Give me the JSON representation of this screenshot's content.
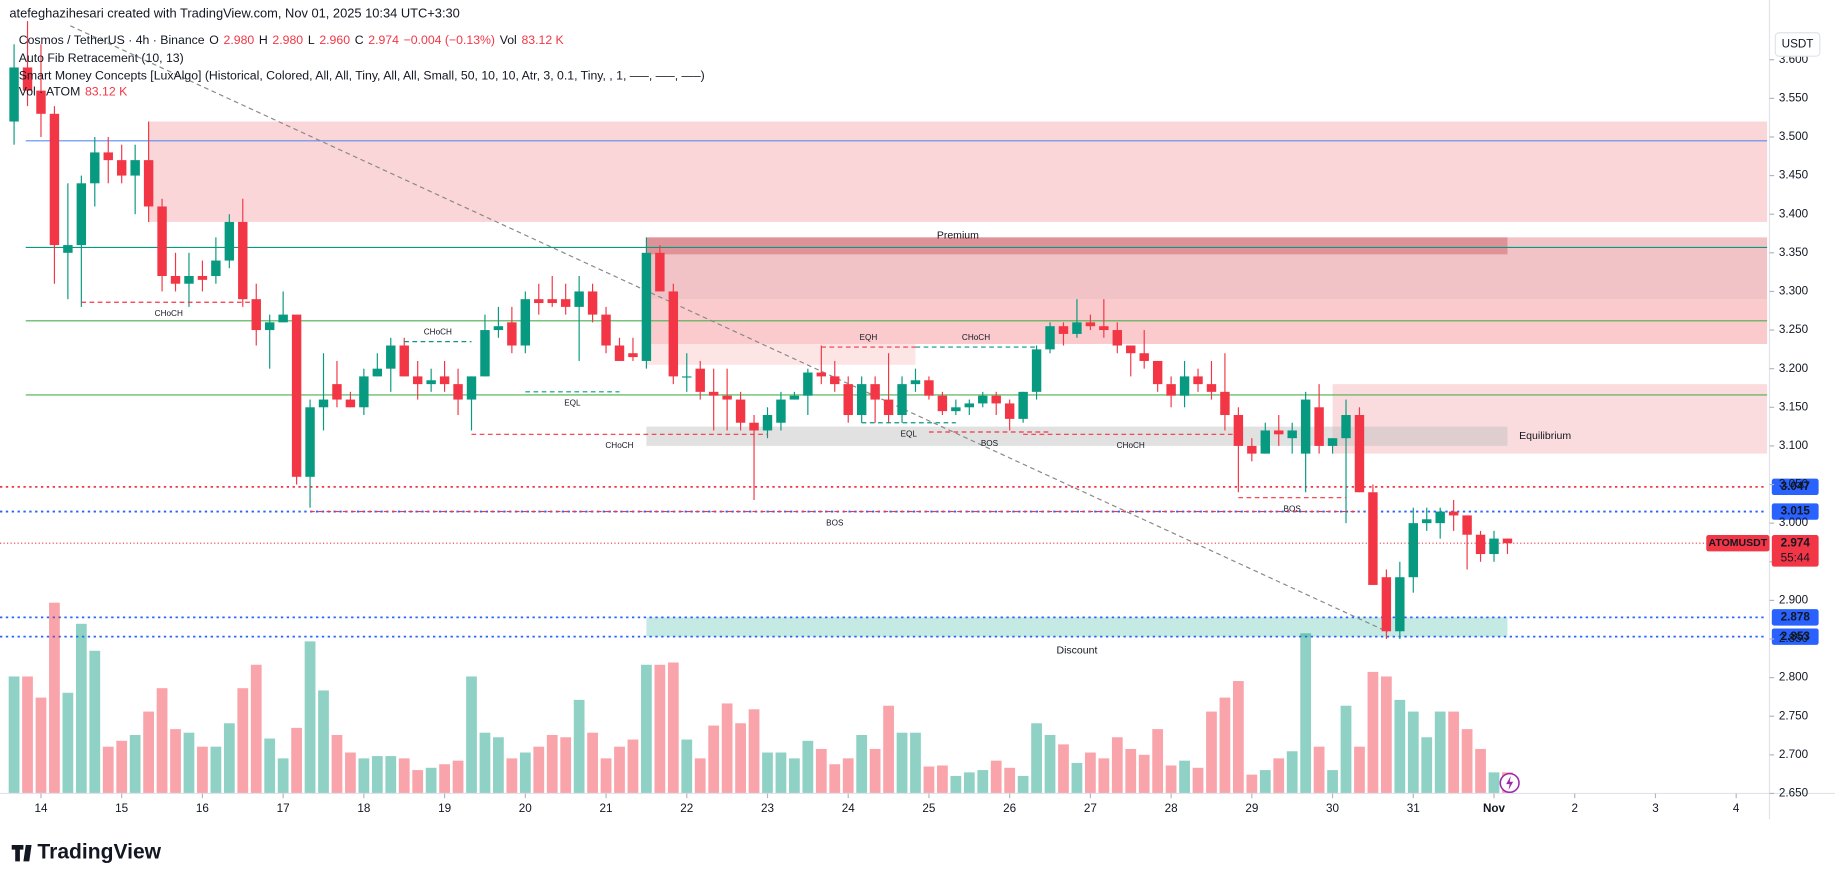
{
  "header": {
    "credit": "atefeghazihesari created with TradingView.com, Nov 01, 2025 10:34 UTC+3:30",
    "legend_line": [
      {
        "text": "Cosmos / TetherUS · 4h · Binance",
        "color": "#131722"
      },
      {
        "text": "O",
        "color": "#131722"
      },
      {
        "text": "2.980",
        "color": "#f23645"
      },
      {
        "text": "H",
        "color": "#131722"
      },
      {
        "text": "2.980",
        "color": "#f23645"
      },
      {
        "text": "L",
        "color": "#131722"
      },
      {
        "text": "2.960",
        "color": "#f23645"
      },
      {
        "text": "C",
        "color": "#131722"
      },
      {
        "text": "2.974",
        "color": "#f23645"
      },
      {
        "text": "−0.004 (−0.13%)",
        "color": "#f23645"
      },
      {
        "text": "Vol",
        "color": "#131722"
      },
      {
        "text": "83.12 K",
        "color": "#f23645"
      }
    ],
    "indicators": [
      "Auto Fib Retracement (10, 13)",
      "Smart Money Concepts [LuxAlgo] (Historical, Colored, All, All, Tiny, All, All, Small, 50, 10, 10, Atr, 3, 0.1, Tiny, , 1, —–, —–, —–)"
    ],
    "vol_line": [
      {
        "text": "Vol · ATOM",
        "color": "#131722"
      },
      {
        "text": "83.12 K",
        "color": "#f23645"
      }
    ],
    "currency": "USDT",
    "logo": "TradingView"
  },
  "chart_data": {
    "type": "candlestick",
    "up_color": "#089981",
    "down_color": "#f23645",
    "ohlc": [
      [
        3.52,
        3.62,
        3.49,
        3.59
      ],
      [
        3.59,
        3.65,
        3.54,
        3.56
      ],
      [
        3.56,
        3.62,
        3.5,
        3.53
      ],
      [
        3.53,
        3.54,
        3.31,
        3.36
      ],
      [
        3.35,
        3.44,
        3.29,
        3.36
      ],
      [
        3.36,
        3.45,
        3.28,
        3.44
      ],
      [
        3.44,
        3.5,
        3.41,
        3.48
      ],
      [
        3.48,
        3.5,
        3.44,
        3.47
      ],
      [
        3.47,
        3.49,
        3.44,
        3.45
      ],
      [
        3.45,
        3.49,
        3.4,
        3.47
      ],
      [
        3.47,
        3.52,
        3.39,
        3.41
      ],
      [
        3.41,
        3.42,
        3.3,
        3.32
      ],
      [
        3.32,
        3.35,
        3.3,
        3.31
      ],
      [
        3.31,
        3.35,
        3.28,
        3.32
      ],
      [
        3.32,
        3.34,
        3.3,
        3.315
      ],
      [
        3.32,
        3.37,
        3.31,
        3.34
      ],
      [
        3.34,
        3.4,
        3.33,
        3.39
      ],
      [
        3.39,
        3.42,
        3.28,
        3.29
      ],
      [
        3.29,
        3.31,
        3.23,
        3.25
      ],
      [
        3.25,
        3.27,
        3.2,
        3.26
      ],
      [
        3.26,
        3.3,
        3.26,
        3.27
      ],
      [
        3.27,
        3.27,
        3.05,
        3.06
      ],
      [
        3.06,
        3.16,
        3.02,
        3.15
      ],
      [
        3.15,
        3.22,
        3.12,
        3.16
      ],
      [
        3.18,
        3.21,
        3.15,
        3.16
      ],
      [
        3.16,
        3.17,
        3.15,
        3.15
      ],
      [
        3.15,
        3.2,
        3.14,
        3.19
      ],
      [
        3.19,
        3.22,
        3.19,
        3.2
      ],
      [
        3.2,
        3.24,
        3.17,
        3.23
      ],
      [
        3.23,
        3.24,
        3.19,
        3.19
      ],
      [
        3.19,
        3.21,
        3.16,
        3.18
      ],
      [
        3.18,
        3.2,
        3.17,
        3.185
      ],
      [
        3.19,
        3.21,
        3.17,
        3.18
      ],
      [
        3.18,
        3.2,
        3.14,
        3.16
      ],
      [
        3.16,
        3.19,
        3.12,
        3.19
      ],
      [
        3.19,
        3.27,
        3.19,
        3.25
      ],
      [
        3.25,
        3.28,
        3.24,
        3.255
      ],
      [
        3.26,
        3.28,
        3.22,
        3.23
      ],
      [
        3.23,
        3.3,
        3.22,
        3.29
      ],
      [
        3.29,
        3.31,
        3.27,
        3.285
      ],
      [
        3.29,
        3.32,
        3.28,
        3.285
      ],
      [
        3.29,
        3.31,
        3.27,
        3.28
      ],
      [
        3.28,
        3.32,
        3.21,
        3.3
      ],
      [
        3.3,
        3.31,
        3.26,
        3.27
      ],
      [
        3.27,
        3.28,
        3.22,
        3.23
      ],
      [
        3.23,
        3.24,
        3.21,
        3.21
      ],
      [
        3.22,
        3.24,
        3.21,
        3.215
      ],
      [
        3.21,
        3.37,
        3.2,
        3.35
      ],
      [
        3.35,
        3.36,
        3.3,
        3.3
      ],
      [
        3.3,
        3.31,
        3.18,
        3.19
      ],
      [
        3.19,
        3.22,
        3.17,
        3.19
      ],
      [
        3.2,
        3.21,
        3.16,
        3.17
      ],
      [
        3.17,
        3.2,
        3.12,
        3.165
      ],
      [
        3.165,
        3.2,
        3.12,
        3.16
      ],
      [
        3.16,
        3.17,
        3.12,
        3.13
      ],
      [
        3.13,
        3.14,
        3.03,
        3.12
      ],
      [
        3.12,
        3.15,
        3.11,
        3.14
      ],
      [
        3.13,
        3.17,
        3.12,
        3.16
      ],
      [
        3.16,
        3.17,
        3.16,
        3.165
      ],
      [
        3.165,
        3.2,
        3.14,
        3.195
      ],
      [
        3.195,
        3.23,
        3.18,
        3.19
      ],
      [
        3.19,
        3.21,
        3.17,
        3.18
      ],
      [
        3.18,
        3.19,
        3.13,
        3.14
      ],
      [
        3.14,
        3.19,
        3.13,
        3.18
      ],
      [
        3.18,
        3.19,
        3.13,
        3.16
      ],
      [
        3.16,
        3.22,
        3.13,
        3.14
      ],
      [
        3.14,
        3.19,
        3.13,
        3.18
      ],
      [
        3.18,
        3.2,
        3.17,
        3.185
      ],
      [
        3.185,
        3.19,
        3.16,
        3.165
      ],
      [
        3.165,
        3.17,
        3.14,
        3.145
      ],
      [
        3.145,
        3.16,
        3.14,
        3.15
      ],
      [
        3.15,
        3.16,
        3.14,
        3.155
      ],
      [
        3.155,
        3.17,
        3.15,
        3.165
      ],
      [
        3.165,
        3.17,
        3.14,
        3.155
      ],
      [
        3.155,
        3.16,
        3.12,
        3.135
      ],
      [
        3.135,
        3.17,
        3.13,
        3.17
      ],
      [
        3.17,
        3.23,
        3.16,
        3.225
      ],
      [
        3.225,
        3.26,
        3.22,
        3.255
      ],
      [
        3.255,
        3.26,
        3.23,
        3.245
      ],
      [
        3.245,
        3.29,
        3.24,
        3.26
      ],
      [
        3.26,
        3.27,
        3.25,
        3.255
      ],
      [
        3.255,
        3.29,
        3.24,
        3.25
      ],
      [
        3.25,
        3.26,
        3.22,
        3.23
      ],
      [
        3.23,
        3.23,
        3.19,
        3.22
      ],
      [
        3.22,
        3.25,
        3.2,
        3.21
      ],
      [
        3.21,
        3.21,
        3.17,
        3.18
      ],
      [
        3.18,
        3.19,
        3.15,
        3.165
      ],
      [
        3.165,
        3.21,
        3.15,
        3.19
      ],
      [
        3.19,
        3.2,
        3.17,
        3.18
      ],
      [
        3.18,
        3.21,
        3.16,
        3.17
      ],
      [
        3.17,
        3.22,
        3.12,
        3.14
      ],
      [
        3.14,
        3.15,
        3.04,
        3.1
      ],
      [
        3.1,
        3.11,
        3.08,
        3.09
      ],
      [
        3.09,
        3.13,
        3.09,
        3.12
      ],
      [
        3.12,
        3.14,
        3.1,
        3.115
      ],
      [
        3.11,
        3.13,
        3.09,
        3.12
      ],
      [
        3.09,
        3.17,
        3.04,
        3.16
      ],
      [
        3.15,
        3.18,
        3.09,
        3.1
      ],
      [
        3.1,
        3.11,
        3.09,
        3.11
      ],
      [
        3.11,
        3.16,
        3.0,
        3.14
      ],
      [
        3.14,
        3.15,
        3.04,
        3.04
      ],
      [
        3.04,
        3.05,
        2.92,
        2.92
      ],
      [
        2.93,
        2.94,
        2.85,
        2.86
      ],
      [
        2.86,
        2.95,
        2.85,
        2.93
      ],
      [
        2.93,
        3.02,
        2.91,
        3.0
      ],
      [
        3.0,
        3.02,
        2.99,
        3.005
      ],
      [
        3.0,
        3.02,
        2.98,
        3.015
      ],
      [
        3.015,
        3.03,
        2.99,
        3.01
      ],
      [
        3.01,
        3.01,
        2.94,
        2.985
      ],
      [
        2.985,
        2.99,
        2.95,
        2.96
      ],
      [
        2.96,
        2.99,
        2.95,
        2.98
      ],
      [
        2.98,
        2.98,
        2.96,
        2.974
      ]
    ],
    "volume": [
      460,
      460,
      377,
      750,
      396,
      667,
      561,
      184,
      207,
      230,
      322,
      414,
      253,
      239,
      184,
      184,
      276,
      414,
      506,
      216,
      138,
      258,
      598,
      405,
      230,
      161,
      138,
      147,
      147,
      138,
      92,
      101,
      115,
      129,
      460,
      239,
      221,
      138,
      161,
      184,
      230,
      221,
      368,
      239,
      138,
      184,
      212,
      506,
      506,
      515,
      212,
      138,
      267,
      354,
      276,
      331,
      161,
      161,
      138,
      207,
      175,
      115,
      138,
      230,
      175,
      345,
      239,
      239,
      106,
      110,
      69,
      83,
      92,
      129,
      101,
      69,
      276,
      230,
      193,
      120,
      161,
      138,
      221,
      175,
      152,
      253,
      110,
      129,
      101,
      322,
      377,
      442,
      74,
      92,
      138,
      166,
      630,
      184,
      92,
      345,
      184,
      478,
      460,
      368,
      322,
      221,
      322,
      322,
      253,
      175,
      83,
      83.12
    ],
    "xlim": [
      -0.35,
      130.3
    ],
    "ylim": [
      2.65,
      3.644
    ],
    "xticks": [
      {
        "value": 2,
        "label": "14"
      },
      {
        "value": 8,
        "label": "15"
      },
      {
        "value": 14,
        "label": "16"
      },
      {
        "value": 20,
        "label": "17"
      },
      {
        "value": 26,
        "label": "18"
      },
      {
        "value": 32,
        "label": "19"
      },
      {
        "value": 38,
        "label": "20"
      },
      {
        "value": 44,
        "label": "21"
      },
      {
        "value": 50,
        "label": "22"
      },
      {
        "value": 56,
        "label": "23"
      },
      {
        "value": 62,
        "label": "24"
      },
      {
        "value": 68,
        "label": "25"
      },
      {
        "value": 74,
        "label": "26"
      },
      {
        "value": 80,
        "label": "27"
      },
      {
        "value": 86,
        "label": "28"
      },
      {
        "value": 92,
        "label": "29"
      },
      {
        "value": 98,
        "label": "30"
      },
      {
        "value": 104,
        "label": "31"
      },
      {
        "value": 110,
        "label": "Nov"
      },
      {
        "value": 116,
        "label": "2"
      },
      {
        "value": 122,
        "label": "3"
      },
      {
        "value": 128,
        "label": "4"
      }
    ],
    "yticks": [
      {
        "value": 2.65,
        "label": "2.650"
      },
      {
        "value": 2.7,
        "label": "2.700"
      },
      {
        "value": 2.75,
        "label": "2.750"
      },
      {
        "value": 2.8,
        "label": "2.800"
      },
      {
        "value": 2.85,
        "label": "2.850"
      },
      {
        "value": 2.9,
        "label": "2.900"
      },
      {
        "value": 2.95,
        "label": "2.950"
      },
      {
        "value": 3.0,
        "label": "3.000"
      },
      {
        "value": 3.05,
        "label": "3.050"
      },
      {
        "value": 3.1,
        "label": "3.100"
      },
      {
        "value": 3.15,
        "label": "3.150"
      },
      {
        "value": 3.2,
        "label": "3.200"
      },
      {
        "value": 3.25,
        "label": "3.250"
      },
      {
        "value": 3.3,
        "label": "3.300"
      },
      {
        "value": 3.35,
        "label": "3.350"
      },
      {
        "value": 3.4,
        "label": "3.400"
      },
      {
        "value": 3.45,
        "label": "3.450"
      },
      {
        "value": 3.5,
        "label": "3.500"
      },
      {
        "value": 3.55,
        "label": "3.550"
      },
      {
        "value": 3.6,
        "label": "3.600"
      }
    ],
    "zones": [
      {
        "from": 10,
        "to": 130.3,
        "low": 3.39,
        "high": 3.52,
        "color": "#f7a5a8",
        "label": "Premium",
        "label_color": "#f23645"
      },
      {
        "from": 47,
        "to": 130.3,
        "low": 3.29,
        "high": 3.37,
        "color": "#e07b80"
      },
      {
        "from": 47,
        "to": 111,
        "low": 3.348,
        "high": 3.37,
        "color": "#c9595f"
      },
      {
        "from": 47,
        "to": 130.3,
        "low": 3.232,
        "high": 3.29,
        "color": "#f48a8f"
      },
      {
        "from": 47,
        "to": 67,
        "low": 3.205,
        "high": 3.232,
        "color": "#fbc5c7"
      },
      {
        "from": 98,
        "to": 130.3,
        "low": 3.09,
        "high": 3.18,
        "color": "#f7b2b5"
      },
      {
        "from": 47,
        "to": 111,
        "low": 3.1,
        "high": 3.125,
        "color": "#bdbdbd",
        "label": "Equilibrium",
        "label_color": "#9e9e9e"
      },
      {
        "from": 47,
        "to": 111,
        "low": 2.853,
        "high": 2.878,
        "color": "#7fd1c4",
        "label": "Discount",
        "label_color": "#089981"
      }
    ],
    "levels": [
      {
        "value": 3.495,
        "color": "#5b8def",
        "style": "solid"
      },
      {
        "value": 3.357,
        "color": "#089981",
        "style": "solid"
      },
      {
        "value": 3.262,
        "color": "#4caf50",
        "style": "solid"
      },
      {
        "value": 3.166,
        "color": "#4caf50",
        "style": "solid"
      },
      {
        "value": 3.047,
        "color": "#f23645",
        "style": "dotted",
        "tag_color": "#2962ff"
      },
      {
        "value": 3.015,
        "color": "#2962ff",
        "style": "dotted",
        "tag_color": "#2962ff"
      },
      {
        "value": 2.878,
        "color": "#2962ff",
        "style": "dotted",
        "tag_color": "#2962ff"
      },
      {
        "value": 2.853,
        "color": "#2962ff",
        "style": "dotted",
        "tag_color": "#2962ff"
      }
    ],
    "structures": [
      {
        "label": "CHoCH",
        "color": "#f23645",
        "price": 3.286,
        "from": 5,
        "to": 18,
        "side": "below"
      },
      {
        "label": "CHoCH",
        "color": "#089981",
        "price": 3.235,
        "from": 29,
        "to": 34,
        "side": "above"
      },
      {
        "label": "EQL",
        "color": "#089981",
        "price": 3.17,
        "from": 38,
        "to": 45,
        "side": "below"
      },
      {
        "label": "CHoCH",
        "color": "#f23645",
        "price": 3.115,
        "from": 34,
        "to": 56,
        "side": "below"
      },
      {
        "label": "BOS",
        "color": "#f23645",
        "price": 3.015,
        "from": 22,
        "to": 100,
        "side": "below"
      },
      {
        "label": "EQH",
        "color": "#f23645",
        "price": 3.228,
        "from": 60,
        "to": 67,
        "side": "above"
      },
      {
        "label": "CHoCH",
        "color": "#089981",
        "price": 3.228,
        "from": 67,
        "to": 76,
        "side": "above"
      },
      {
        "label": "EQL",
        "color": "#089981",
        "price": 3.13,
        "from": 63,
        "to": 70,
        "side": "below"
      },
      {
        "label": "BOS",
        "color": "#f23645",
        "price": 3.118,
        "from": 68,
        "to": 77,
        "side": "below"
      },
      {
        "label": "CHoCH",
        "color": "#f23645",
        "price": 3.115,
        "from": 75,
        "to": 91,
        "side": "below"
      },
      {
        "label": "BOS",
        "color": "#f23645",
        "price": 3.033,
        "from": 91,
        "to": 99,
        "side": "below"
      }
    ],
    "last_price": {
      "symbol": "ATOMUSDT",
      "value": 2.974,
      "countdown": "55:44",
      "color": "#f23645"
    }
  }
}
